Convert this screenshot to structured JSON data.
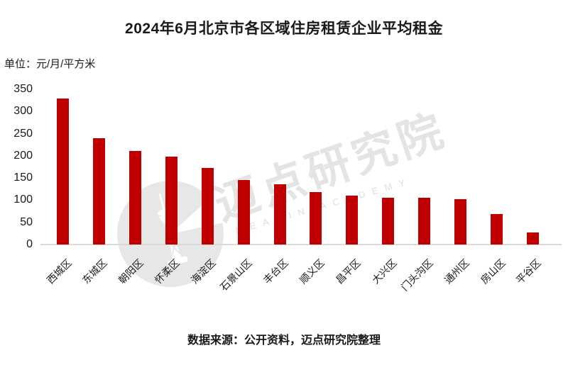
{
  "title": "2024年6月北京市各区域住房租赁企业平均租金",
  "unit_label": "单位：元/月/平方米",
  "footer": "数据来源：公开资料，迈点研究院整理",
  "watermark": {
    "cn_text": "迈点研究院",
    "en_text": "MEADIN ACADEMY",
    "logo": "meadin-tower-logo"
  },
  "colors": {
    "bar": "#c00000",
    "axis_line": "#d9d9d9",
    "text": "#1a1a1a",
    "watermark": "#e4e4e4",
    "background": "#ffffff"
  },
  "chart_data": {
    "type": "bar",
    "title": "2024年6月北京市各区域住房租赁企业平均租金",
    "unit": "元/月/平方米",
    "categories": [
      "西城区",
      "东城区",
      "朝阳区",
      "怀柔区",
      "海淀区",
      "石景山区",
      "丰台区",
      "顺义区",
      "昌平区",
      "大兴区",
      "门头沟区",
      "通州区",
      "房山区",
      "平谷区"
    ],
    "values": [
      330,
      240,
      211,
      198,
      172,
      145,
      136,
      119,
      110,
      106,
      105,
      103,
      68,
      27
    ],
    "xlabel": "",
    "ylabel": "元/月/平方米",
    "ylim": [
      0,
      350
    ],
    "ytick_step": 50,
    "yticks": [
      350,
      300,
      250,
      200,
      150,
      100,
      50,
      0
    ],
    "grid": false,
    "legend": false,
    "bar_color": "#c00000",
    "source": "数据来源：公开资料，迈点研究院整理"
  }
}
